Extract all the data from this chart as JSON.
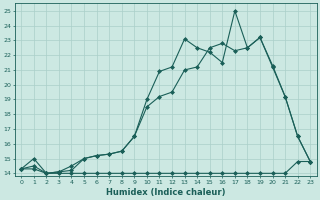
{
  "xlabel": "Humidex (Indice chaleur)",
  "bg_color": "#cce8e2",
  "grid_color": "#aacfc9",
  "line_color": "#1a5f58",
  "xlim": [
    -0.5,
    23.5
  ],
  "ylim": [
    13.8,
    25.5
  ],
  "xticks": [
    0,
    1,
    2,
    3,
    4,
    5,
    6,
    7,
    8,
    9,
    10,
    11,
    12,
    13,
    14,
    15,
    16,
    17,
    18,
    19,
    20,
    21,
    22,
    23
  ],
  "yticks": [
    14,
    15,
    16,
    17,
    18,
    19,
    20,
    21,
    22,
    23,
    24,
    25
  ],
  "line_flat_x": [
    0,
    1,
    2,
    3,
    4,
    5,
    6,
    7,
    8,
    9,
    10,
    11,
    12,
    13,
    14,
    15,
    16,
    17,
    18,
    19,
    20,
    21,
    22,
    23
  ],
  "line_flat_y": [
    14.3,
    14.3,
    14.0,
    14.0,
    14.0,
    14.0,
    14.0,
    14.0,
    14.0,
    14.0,
    14.0,
    14.0,
    14.0,
    14.0,
    14.0,
    14.0,
    14.0,
    14.0,
    14.0,
    14.0,
    14.0,
    14.0,
    14.8,
    14.8
  ],
  "line_jagged_x": [
    0,
    1,
    2,
    3,
    4,
    5,
    6,
    7,
    8,
    9,
    10,
    11,
    12,
    13,
    14,
    15,
    16,
    17,
    18,
    19,
    20,
    21,
    22,
    23
  ],
  "line_jagged_y": [
    14.3,
    15.0,
    14.0,
    14.1,
    14.5,
    15.0,
    15.2,
    15.3,
    15.5,
    16.5,
    19.0,
    20.9,
    21.2,
    23.1,
    22.5,
    22.2,
    21.5,
    25.0,
    22.5,
    23.2,
    21.2,
    19.2,
    16.5,
    14.8
  ],
  "line_diag_x": [
    0,
    1,
    2,
    3,
    4,
    5,
    6,
    7,
    8,
    9,
    10,
    11,
    12,
    13,
    14,
    15,
    16,
    17,
    18,
    19,
    20,
    21,
    22,
    23
  ],
  "line_diag_y": [
    14.3,
    14.5,
    14.0,
    14.1,
    14.2,
    15.0,
    15.2,
    15.3,
    15.5,
    16.5,
    18.5,
    19.2,
    19.5,
    21.0,
    21.2,
    22.5,
    22.8,
    22.3,
    22.5,
    23.2,
    21.3,
    19.2,
    16.5,
    14.8
  ]
}
